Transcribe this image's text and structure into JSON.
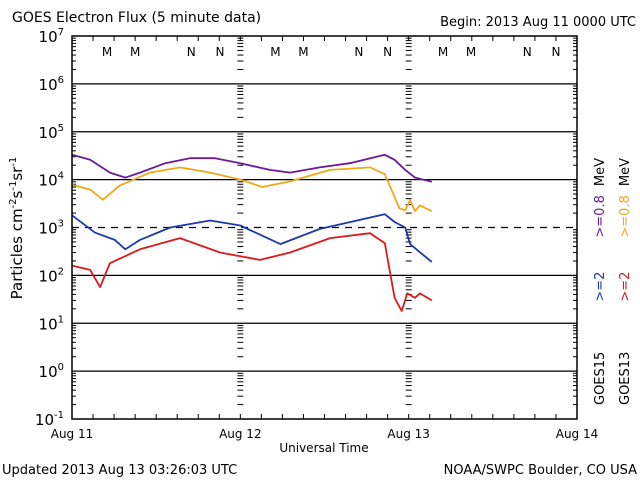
{
  "chart_data": {
    "type": "line",
    "title": "GOES Electron Flux (5 minute data)",
    "begin_label": "Begin: 2013 Aug 11 0000 UTC",
    "xlabel": "Universal Time",
    "ylabel": "Particles cm",
    "ylabel_parts": {
      "base": "Particles cm",
      "exp1": "-2",
      "mid1": "s",
      "exp2": "-1",
      "mid2": "sr",
      "exp3": "-1"
    },
    "x_unit": "hours since 2013 Aug 11 00:00 UTC",
    "xlim": [
      0,
      72
    ],
    "ylim": [
      0.1,
      10000000
    ],
    "yscale": "log",
    "x_ticks": [
      {
        "value": 0,
        "label": "Aug 11"
      },
      {
        "value": 24,
        "label": "Aug 12"
      },
      {
        "value": 48,
        "label": "Aug 13"
      },
      {
        "value": 72,
        "label": "Aug 14"
      }
    ],
    "y_ticks": [
      {
        "exp": 7,
        "base": "10",
        "sup": "7"
      },
      {
        "exp": 6,
        "base": "10",
        "sup": "6"
      },
      {
        "exp": 5,
        "base": "10",
        "sup": "5"
      },
      {
        "exp": 4,
        "base": "10",
        "sup": "4"
      },
      {
        "exp": 3,
        "base": "10",
        "sup": "3"
      },
      {
        "exp": 2,
        "base": "10",
        "sup": "2"
      },
      {
        "exp": 1,
        "base": "10",
        "sup": "1"
      },
      {
        "exp": 0,
        "base": "10",
        "sup": "0"
      },
      {
        "exp": -1,
        "base": "10",
        "sup": "-1"
      }
    ],
    "gridlines": [
      {
        "exp": 6,
        "style": "solid"
      },
      {
        "exp": 5,
        "style": "solid"
      },
      {
        "exp": 4,
        "style": "solid"
      },
      {
        "exp": 3,
        "style": "dashed"
      },
      {
        "exp": 2,
        "style": "solid"
      },
      {
        "exp": 1,
        "style": "solid"
      },
      {
        "exp": 0,
        "style": "solid"
      }
    ],
    "markers": [
      {
        "label": "M",
        "hour": 5.0,
        "color": "#cc2222"
      },
      {
        "label": "M",
        "hour": 9.0,
        "color": "#1a3aa8"
      },
      {
        "label": "N",
        "hour": 17.0,
        "color": "#cc2222"
      },
      {
        "label": "N",
        "hour": 21.1,
        "color": "#1a3aa8"
      },
      {
        "label": "M",
        "hour": 29.0,
        "color": "#cc2222"
      },
      {
        "label": "M",
        "hour": 33.0,
        "color": "#1a3aa8"
      },
      {
        "label": "N",
        "hour": 40.9,
        "color": "#cc2222"
      },
      {
        "label": "N",
        "hour": 45.0,
        "color": "#1a3aa8"
      },
      {
        "label": "M",
        "hour": 52.9,
        "color": "#cc2222"
      },
      {
        "label": "M",
        "hour": 56.9,
        "color": "#1a3aa8"
      },
      {
        "label": "N",
        "hour": 64.9,
        "color": "#cc2222"
      },
      {
        "label": "N",
        "hour": 69.0,
        "color": "#1a3aa8"
      }
    ],
    "series": [
      {
        "name": "GOES15 >=0.8 MeV",
        "color": "#6a1a9a",
        "x": [
          0,
          2.6,
          5.4,
          7.6,
          9.7,
          13.3,
          16.8,
          20.4,
          24,
          28.2,
          31.1,
          35.3,
          39.6,
          44.6,
          46.0,
          47.5,
          48.9,
          51.3
        ],
        "y": [
          33000,
          26000,
          14000,
          11000,
          14000,
          22000,
          28000,
          28000,
          22000,
          16000,
          14000,
          18000,
          22000,
          33000,
          26000,
          16000,
          11000,
          9000
        ]
      },
      {
        "name": "GOES13 >=0.8 MeV",
        "color": "#f0a818",
        "x": [
          0,
          2.6,
          4.4,
          6.8,
          11.1,
          15.4,
          19.7,
          24,
          27.1,
          31.1,
          36.8,
          42.5,
          44.6,
          46.7,
          47.5,
          48.2,
          48.9,
          49.6,
          51.3
        ],
        "y": [
          7800,
          6200,
          3800,
          7500,
          14000,
          18000,
          14000,
          10000,
          7000,
          9200,
          16000,
          18000,
          13000,
          2500,
          2300,
          3700,
          2200,
          2900,
          2200
        ]
      },
      {
        "name": "GOES15 >=2 MeV",
        "color": "#1a3aa8",
        "x": [
          0,
          3.3,
          6.1,
          7.6,
          9.7,
          14.0,
          19.7,
          24,
          29.7,
          35.3,
          44.6,
          46.0,
          47.5,
          48.2,
          51.3
        ],
        "y": [
          1800,
          780,
          550,
          350,
          550,
          1000,
          1400,
          1100,
          450,
          930,
          1900,
          1300,
          1000,
          450,
          190
        ]
      },
      {
        "name": "GOES13 >=2 MeV",
        "color": "#dd1a1a",
        "x": [
          0,
          2.6,
          4.0,
          5.4,
          9.7,
          15.4,
          21.1,
          26.8,
          31.1,
          36.8,
          42.5,
          44.6,
          46.0,
          47.0,
          47.8,
          48.9,
          49.6,
          51.3
        ],
        "y": [
          160,
          130,
          57,
          180,
          350,
          600,
          300,
          210,
          300,
          600,
          760,
          470,
          34,
          18,
          42,
          34,
          42,
          30
        ]
      }
    ],
    "legend": {
      "placement": "right-vertical",
      "groups": [
        {
          "satellite": "GOES15",
          "entries": [
            {
              "text": ">=2",
              "color": "#1a3aa8"
            },
            {
              "text": ">=0.8",
              "color": "#6a1a9a"
            },
            {
              "text": "MeV",
              "color": "#000000"
            }
          ]
        },
        {
          "satellite": "GOES13",
          "entries": [
            {
              "text": ">=2",
              "color": "#dd1a1a"
            },
            {
              "text": ">=0.8",
              "color": "#f0a818"
            },
            {
              "text": "MeV",
              "color": "#000000"
            }
          ]
        }
      ]
    }
  },
  "footer": {
    "updated": "Updated 2013 Aug 13 03:26:03 UTC",
    "credit": "NOAA/SWPC Boulder, CO USA"
  }
}
